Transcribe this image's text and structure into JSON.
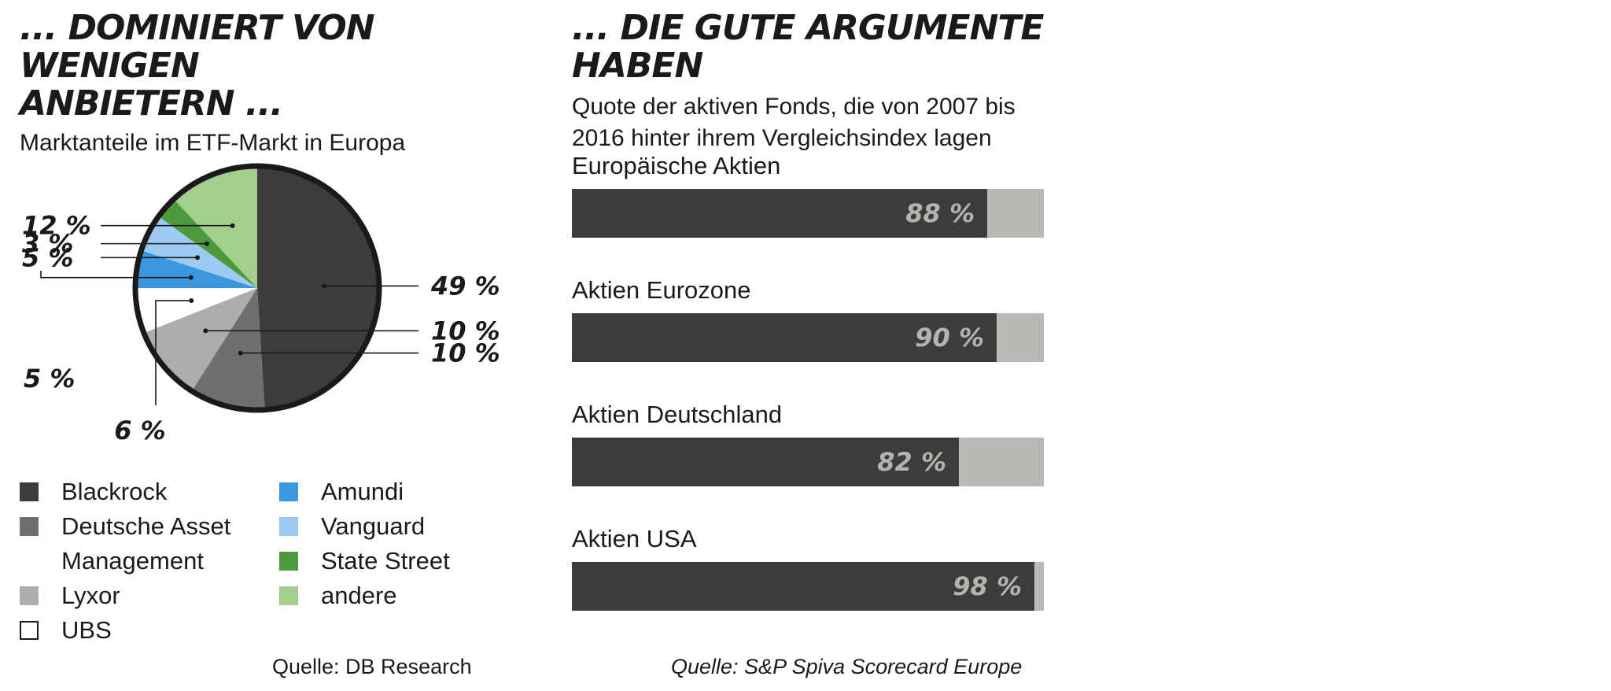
{
  "left": {
    "title_line1": "... DOMINIERT VON WENIGEN",
    "title_line2": "ANBIETERN ...",
    "subtitle": "Marktanteile im ETF-Markt in Europa",
    "source": "Quelle: DB Research"
  },
  "right": {
    "title": "... DIE GUTE ARGUMENTE HABEN",
    "subtitle_line1": "Quote der aktiven Fonds, die von 2007 bis",
    "subtitle_line2": "2016 hinter ihrem Vergleichsindex lagen",
    "source": "Quelle: S&P Spiva Scorecard Europe"
  },
  "legend": [
    {
      "label": "Blackrock",
      "color": "#3c3c3b",
      "line2": ""
    },
    {
      "label": "Deutsche Asset",
      "color": "#6f6f6e",
      "line2": "Management"
    },
    {
      "label": "Lyxor",
      "color": "#adadab",
      "line2": ""
    },
    {
      "label": "UBS",
      "color": "#ffffff",
      "line2": ""
    },
    {
      "label": "Amundi",
      "color": "#3a97e0",
      "line2": ""
    },
    {
      "label": "Vanguard",
      "color": "#9ec9f2",
      "line2": ""
    },
    {
      "label": "State Street",
      "color": "#4c9a3c",
      "line2": ""
    },
    {
      "label": "andere",
      "color": "#a3cf8e",
      "line2": ""
    }
  ],
  "chart_data": [
    {
      "type": "pie",
      "title": "... DOMINIERT VON WENIGEN ANBIETERN ...",
      "subtitle": "Marktanteile im ETF-Markt in Europa",
      "unit": "%",
      "slices": [
        {
          "name": "Blackrock",
          "value": 49,
          "label": "49 %",
          "color": "#3c3c3b"
        },
        {
          "name": "Deutsche Asset Management",
          "value": 10,
          "label": "10 %",
          "color": "#6f6f6e"
        },
        {
          "name": "Lyxor",
          "value": 10,
          "label": "10 %",
          "color": "#adadab"
        },
        {
          "name": "UBS",
          "value": 6,
          "label": "6 %",
          "color": "#ffffff"
        },
        {
          "name": "Amundi",
          "value": 5,
          "label": "5 %",
          "color": "#3a97e0"
        },
        {
          "name": "Vanguard",
          "value": 5,
          "label": "5 %",
          "color": "#9ec9f2"
        },
        {
          "name": "State Street",
          "value": 3,
          "label": "3 %",
          "color": "#4c9a3c"
        },
        {
          "name": "andere",
          "value": 12,
          "label": "12 %",
          "color": "#a3cf8e"
        }
      ],
      "legend": "bottom"
    },
    {
      "type": "bar",
      "orientation": "horizontal",
      "title": "... DIE GUTE ARGUMENTE HABEN",
      "subtitle": "Quote der aktiven Fonds, die von 2007 bis 2016 hinter ihrem Vergleichsindex lagen",
      "categories": [
        "Europäische Aktien",
        "Aktien Eurozone",
        "Aktien Deutschland",
        "Aktien USA"
      ],
      "values": [
        88,
        90,
        82,
        98
      ],
      "labels": [
        "88 %",
        "90 %",
        "82 %",
        "98 %"
      ],
      "xlim": [
        0,
        100
      ],
      "unit": "%",
      "colors": {
        "fill": "#3c3c3b",
        "track": "#b9b9b6",
        "value_text": "#b3b3b0"
      }
    }
  ]
}
